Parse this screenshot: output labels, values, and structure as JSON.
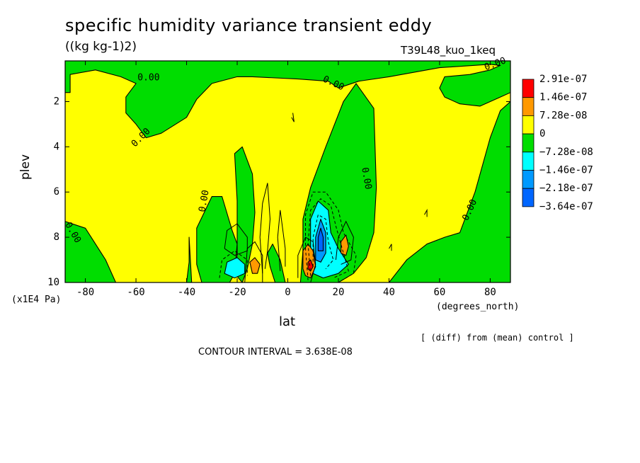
{
  "chart_data": {
    "type": "contour",
    "title": "specific humidity variance transient eddy",
    "units": "((kg kg-1)2)",
    "run_name": "T39L48_kuo_1keq",
    "xlabel": "lat",
    "ylabel": "plev",
    "x_unit": "(degrees_north)",
    "y_unit": "(x1E4 Pa)",
    "xlim": [
      -88,
      88
    ],
    "ylim": [
      10,
      0.2
    ],
    "x_ticks": [
      -80,
      -60,
      -40,
      -20,
      0,
      20,
      40,
      60,
      80
    ],
    "x_tick_labels": [
      "-80",
      "-60",
      "-40",
      "-20",
      "0",
      "20",
      "40",
      "60",
      "80"
    ],
    "y_ticks": [
      2,
      4,
      6,
      8,
      10
    ],
    "y_tick_labels": [
      "2",
      "4",
      "6",
      "8",
      "10"
    ],
    "diff_note": "[ (diff) from (mean) control ]",
    "contour_interval_text": "CONTOUR INTERVAL = 3.638E-08",
    "legend": {
      "placement": "right",
      "levels": [
        {
          "label": "2.91e-07",
          "color": "#ff0000"
        },
        {
          "label": "1.46e-07",
          "color": "#ff9900"
        },
        {
          "label": "7.28e-08",
          "color": "#ffff00"
        },
        {
          "label": "0",
          "color": "#00dd00"
        },
        {
          "label": "−7.28e-08",
          "color": "#00ffff"
        },
        {
          "label": "−1.46e-07",
          "color": "#0099ff"
        },
        {
          "label": "−2.18e-07",
          "color": "#0066ff"
        },
        {
          "label": "−3.64e-07",
          "color": null
        }
      ]
    },
    "contour_labels": [
      {
        "text": "0.00",
        "lat": -55,
        "p": 0.95,
        "rot": 0
      },
      {
        "text": "0.00",
        "lat": -58,
        "p": 3.6,
        "rot": -45
      },
      {
        "text": "0.00",
        "lat": 18,
        "p": 1.2,
        "rot": 25
      },
      {
        "text": "0.00",
        "lat": 82,
        "p": 0.35,
        "rot": -20
      },
      {
        "text": "0.00",
        "lat": -85,
        "p": 7.8,
        "rot": 60
      },
      {
        "text": "0.00",
        "lat": -33,
        "p": 6.4,
        "rot": -80
      },
      {
        "text": "0.00",
        "lat": 31,
        "p": 5.4,
        "rot": 80
      },
      {
        "text": "0.00",
        "lat": 72,
        "p": 6.8,
        "rot": -65
      }
    ],
    "regions": [
      {
        "fill": "#ffff00",
        "pts": [
          [
            -88,
            0.2
          ],
          [
            88,
            0.2
          ],
          [
            88,
            10
          ],
          [
            -88,
            10
          ]
        ]
      },
      {
        "fill": "#00dd00",
        "pts": [
          [
            -88,
            0.2
          ],
          [
            88,
            0.2
          ],
          [
            88,
            1.6
          ],
          [
            84,
            1.8
          ],
          [
            76,
            2.2
          ],
          [
            68,
            2.1
          ],
          [
            62,
            1.8
          ],
          [
            60,
            1.4
          ],
          [
            62,
            0.9
          ],
          [
            72,
            0.8
          ],
          [
            80,
            0.6
          ],
          [
            84,
            0.4
          ],
          [
            80,
            0.35
          ],
          [
            60,
            0.5
          ],
          [
            40,
            0.9
          ],
          [
            28,
            1.1
          ],
          [
            20,
            1.4
          ],
          [
            16,
            1.1
          ],
          [
            4,
            1.0
          ],
          [
            -14,
            0.9
          ],
          [
            -20,
            0.9
          ],
          [
            -30,
            1.2
          ],
          [
            -36,
            1.9
          ],
          [
            -40,
            2.7
          ],
          [
            -50,
            3.4
          ],
          [
            -56,
            3.6
          ],
          [
            -60,
            3.0
          ],
          [
            -64,
            2.5
          ],
          [
            -64,
            1.8
          ],
          [
            -60,
            1.2
          ],
          [
            -66,
            0.9
          ],
          [
            -76,
            0.6
          ],
          [
            -86,
            0.8
          ],
          [
            -86,
            1.6
          ],
          [
            -88,
            1.6
          ]
        ]
      },
      {
        "fill": "#00dd00",
        "pts": [
          [
            5,
            10
          ],
          [
            6,
            8.6
          ],
          [
            6,
            7.2
          ],
          [
            9,
            5.8
          ],
          [
            15,
            4.0
          ],
          [
            22,
            2.0
          ],
          [
            27,
            1.2
          ],
          [
            34,
            2.3
          ],
          [
            35,
            5.8
          ],
          [
            34,
            7.8
          ],
          [
            31,
            8.9
          ],
          [
            26,
            9.6
          ],
          [
            20,
            10
          ]
        ]
      },
      {
        "fill": "#00dd00",
        "pts": [
          [
            -34,
            10
          ],
          [
            -36,
            9.2
          ],
          [
            -36,
            7.6
          ],
          [
            -30,
            6.2
          ],
          [
            -26,
            6.2
          ],
          [
            -22,
            7.7
          ],
          [
            -20,
            8.3
          ],
          [
            -21,
            9.6
          ],
          [
            -23,
            10
          ]
        ]
      },
      {
        "fill": "#00dd00",
        "pts": [
          [
            -21,
            9.6
          ],
          [
            -20,
            8.8
          ],
          [
            -20,
            6.4
          ],
          [
            -21,
            4.3
          ],
          [
            -18,
            4.0
          ],
          [
            -14,
            5.2
          ],
          [
            -13,
            6.9
          ],
          [
            -14,
            8.3
          ],
          [
            -16,
            9.4
          ],
          [
            -18,
            10
          ]
        ]
      },
      {
        "fill": "#00dd00",
        "pts": [
          [
            40,
            10
          ],
          [
            47,
            9.0
          ],
          [
            55,
            8.3
          ],
          [
            62,
            8.0
          ],
          [
            68,
            7.8
          ],
          [
            74,
            6.0
          ],
          [
            80,
            3.6
          ],
          [
            84,
            2.4
          ],
          [
            88,
            2.0
          ],
          [
            88,
            10
          ]
        ]
      },
      {
        "fill": "#00dd00",
        "pts": [
          [
            -88,
            7.3
          ],
          [
            -80,
            7.6
          ],
          [
            -72,
            9.0
          ],
          [
            -68,
            10
          ],
          [
            -88,
            10
          ]
        ]
      },
      {
        "fill": "#00dd00",
        "pts": [
          [
            -39,
            8.0
          ],
          [
            -39,
            9.1
          ],
          [
            -40,
            10
          ],
          [
            -38,
            10
          ]
        ]
      },
      {
        "fill": "#00dd00",
        "pts": [
          [
            -8,
            8.7
          ],
          [
            -7,
            9.3
          ],
          [
            -5,
            10
          ],
          [
            -1,
            10
          ],
          [
            -3,
            9.0
          ],
          [
            -6,
            8.3
          ]
        ]
      },
      {
        "fill": "#00ffff",
        "pts": [
          [
            10,
            9.6
          ],
          [
            9,
            8.4
          ],
          [
            9,
            7.2
          ],
          [
            12,
            6.4
          ],
          [
            16,
            6.8
          ],
          [
            17,
            7.8
          ],
          [
            20,
            8.5
          ],
          [
            24,
            9.2
          ],
          [
            20,
            9.6
          ],
          [
            14,
            9.8
          ]
        ]
      },
      {
        "fill": "#00ffff",
        "pts": [
          [
            -25,
            9.6
          ],
          [
            -24,
            9.1
          ],
          [
            -20,
            8.9
          ],
          [
            -17,
            9.2
          ],
          [
            -17,
            9.6
          ],
          [
            -21,
            9.8
          ]
        ]
      },
      {
        "fill": "#0099ff",
        "pts": [
          [
            11,
            9.0
          ],
          [
            11,
            8.0
          ],
          [
            13,
            7.2
          ],
          [
            15,
            7.8
          ],
          [
            15,
            8.7
          ],
          [
            13,
            9.1
          ]
        ]
      },
      {
        "fill": "#0066ff",
        "pts": [
          [
            12,
            8.6
          ],
          [
            12,
            8.0
          ],
          [
            13,
            7.6
          ],
          [
            14,
            8.0
          ],
          [
            14,
            8.6
          ]
        ]
      },
      {
        "fill": "#ff9900",
        "pts": [
          [
            6,
            9.4
          ],
          [
            6,
            8.6
          ],
          [
            8,
            8.3
          ],
          [
            10,
            8.6
          ],
          [
            11,
            9.3
          ],
          [
            9,
            9.8
          ],
          [
            7,
            9.7
          ]
        ]
      },
      {
        "fill": "#ff0000",
        "pts": [
          [
            8,
            9.4
          ],
          [
            8,
            9.1
          ],
          [
            9,
            9.0
          ],
          [
            10,
            9.3
          ],
          [
            9,
            9.5
          ]
        ]
      },
      {
        "fill": "#ff9900",
        "pts": [
          [
            21,
            8.7
          ],
          [
            21,
            8.2
          ],
          [
            23,
            7.9
          ],
          [
            24,
            8.4
          ],
          [
            23,
            8.8
          ]
        ]
      },
      {
        "fill": "#ff9900",
        "pts": [
          [
            -14,
            9.6
          ],
          [
            -15,
            9.1
          ],
          [
            -13,
            8.9
          ],
          [
            -11,
            9.2
          ],
          [
            -12,
            9.6
          ]
        ]
      }
    ],
    "contour_lines": [
      {
        "style": "solid",
        "pts": [
          [
            -25,
            8.5
          ],
          [
            -24,
            7.7
          ],
          [
            -20,
            7.4
          ],
          [
            -16,
            8.0
          ],
          [
            -16,
            8.6
          ],
          [
            -21,
            8.8
          ],
          [
            -25,
            8.5
          ]
        ]
      },
      {
        "style": "solid",
        "pts": [
          [
            -17,
            10
          ],
          [
            -16,
            8.5
          ],
          [
            -13,
            8.2
          ],
          [
            -10,
            8.8
          ],
          [
            -10,
            10
          ]
        ]
      },
      {
        "style": "solid",
        "pts": [
          [
            -10,
            9.6
          ],
          [
            -11,
            8.0
          ],
          [
            -10,
            6.5
          ],
          [
            -8,
            5.6
          ],
          [
            -7,
            7.2
          ],
          [
            -8,
            8.6
          ],
          [
            -9,
            9.4
          ]
        ]
      },
      {
        "style": "solid",
        "pts": [
          [
            -3,
            9.5
          ],
          [
            -4,
            8.0
          ],
          [
            -3,
            6.8
          ],
          [
            -1,
            8.5
          ],
          [
            -1,
            9.3
          ]
        ]
      },
      {
        "style": "solid",
        "pts": [
          [
            4,
            9.8
          ],
          [
            4,
            8.8
          ],
          [
            7,
            8.0
          ],
          [
            10,
            8.2
          ],
          [
            11,
            9.2
          ],
          [
            9,
            10
          ]
        ]
      },
      {
        "style": "solid",
        "pts": [
          [
            19,
            9.0
          ],
          [
            20,
            8.0
          ],
          [
            23,
            7.3
          ],
          [
            26,
            8.0
          ],
          [
            25,
            9.0
          ],
          [
            21,
            9.2
          ]
        ]
      },
      {
        "style": "solid",
        "pts": [
          [
            1.5,
            2.7
          ],
          [
            2.5,
            2.9
          ],
          [
            2,
            2.5
          ]
        ]
      },
      {
        "style": "solid",
        "pts": [
          [
            54,
            7.0
          ],
          [
            55,
            6.8
          ],
          [
            55,
            7.1
          ]
        ]
      },
      {
        "style": "solid",
        "pts": [
          [
            40,
            8.5
          ],
          [
            41,
            8.3
          ],
          [
            41,
            8.6
          ]
        ]
      },
      {
        "style": "dashed",
        "pts": [
          [
            8,
            9.9
          ],
          [
            7,
            8.5
          ],
          [
            7,
            7.0
          ],
          [
            10,
            6.0
          ],
          [
            15,
            6.0
          ],
          [
            20,
            6.8
          ],
          [
            22,
            7.8
          ],
          [
            27,
            8.8
          ],
          [
            26,
            9.6
          ],
          [
            20,
            10
          ]
        ]
      },
      {
        "style": "dashed",
        "pts": [
          [
            9,
            9.7
          ],
          [
            8,
            8.3
          ],
          [
            9,
            6.8
          ],
          [
            13,
            6.3
          ],
          [
            17,
            6.6
          ],
          [
            19,
            7.5
          ],
          [
            22,
            8.7
          ],
          [
            24,
            9.5
          ],
          [
            18,
            9.8
          ]
        ]
      },
      {
        "style": "dashed",
        "pts": [
          [
            10,
            9.3
          ],
          [
            10,
            8.0
          ],
          [
            12,
            7.0
          ],
          [
            15,
            7.2
          ],
          [
            16,
            8.2
          ],
          [
            18,
            9.0
          ],
          [
            15,
            9.4
          ]
        ]
      },
      {
        "style": "dashed",
        "pts": [
          [
            -27,
            9.8
          ],
          [
            -26,
            9.0
          ],
          [
            -21,
            8.6
          ],
          [
            -16,
            9.0
          ],
          [
            -16,
            9.7
          ]
        ]
      }
    ]
  }
}
